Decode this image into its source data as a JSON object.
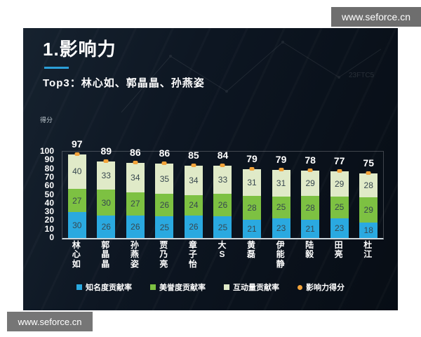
{
  "watermarks": {
    "top": "www.seforce.cn",
    "bottom": "www.seforce.cn"
  },
  "slide": {
    "title": "1.影响力",
    "subtitle": "Top3：林心如、郭晶晶、孙燕姿",
    "faint_mark": "23FTC5",
    "accent_color": "#2b9fd8"
  },
  "chart_data": {
    "type": "bar",
    "stacked": true,
    "title": "",
    "xlabel": "",
    "ylabel": "得分",
    "ylim": [
      0,
      100
    ],
    "ytick_step": 10,
    "grid": false,
    "legend_position": "bottom",
    "categories": [
      "林心如",
      "郭晶晶",
      "孙燕姿",
      "贾乃亮",
      "章子怡",
      "大S",
      "黄磊",
      "伊能静",
      "陆毅",
      "田亮",
      "杜江"
    ],
    "series": [
      {
        "name": "知名度贡献率",
        "color": "#2aa9e0",
        "values": [
          30,
          26,
          26,
          25,
          26,
          25,
          21,
          23,
          21,
          23,
          18
        ]
      },
      {
        "name": "美誉度贡献率",
        "color": "#7dc142",
        "values": [
          27,
          30,
          27,
          26,
          24,
          26,
          28,
          25,
          28,
          25,
          29
        ]
      },
      {
        "name": "互动量贡献率",
        "color": "#e0eac8",
        "values": [
          40,
          33,
          34,
          35,
          34,
          33,
          31,
          31,
          29,
          29,
          28
        ]
      }
    ],
    "totals": {
      "name": "影响力得分",
      "color": "#f2a33a",
      "values": [
        97,
        89,
        86,
        86,
        85,
        84,
        79,
        79,
        78,
        77,
        75
      ]
    }
  }
}
